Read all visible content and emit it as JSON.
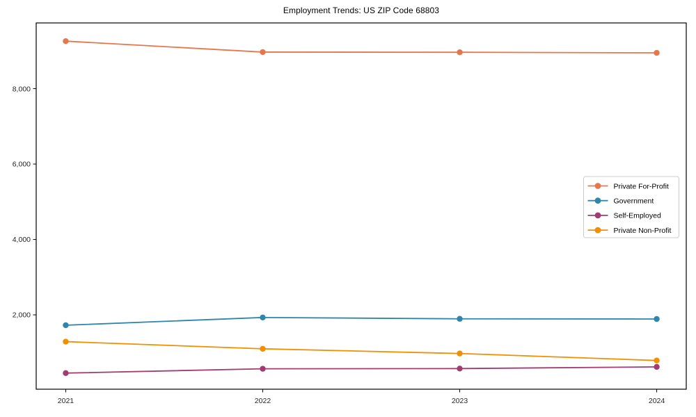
{
  "figure": {
    "background": "#ffffff",
    "spine_color": "#000000",
    "tick_color": "#000000",
    "tick_label_color": "#262626",
    "legend_border_color": "#cccccc",
    "legend_background": "#ffffff"
  },
  "chart_data": {
    "type": "line",
    "title": "Employment Trends: US ZIP Code 68803",
    "x": [
      2021,
      2022,
      2023,
      2024
    ],
    "categories": [
      "2021",
      "2022",
      "2023",
      "2024"
    ],
    "series": [
      {
        "name": "Private For-Profit",
        "color": "#E8764B",
        "values": [
          9260,
          8970,
          8965,
          8950
        ]
      },
      {
        "name": "Government",
        "color": "#2E86AB",
        "values": [
          1725,
          1930,
          1895,
          1890
        ]
      },
      {
        "name": "Self-Employed",
        "color": "#A23B72",
        "values": [
          455,
          570,
          575,
          620
        ]
      },
      {
        "name": "Private Non-Profit",
        "color": "#F18F01",
        "values": [
          1290,
          1100,
          975,
          790
        ]
      }
    ],
    "xlabel": "",
    "ylabel": "",
    "yticks": [
      2000,
      4000,
      6000,
      8000
    ],
    "ytick_labels": [
      "2,000",
      "4,000",
      "6,000",
      "8,000"
    ],
    "ylim": [
      28,
      9743
    ],
    "xlim": [
      2020.85,
      2024.15
    ],
    "grid": false,
    "marker": "circle",
    "legend_position": "center right"
  }
}
